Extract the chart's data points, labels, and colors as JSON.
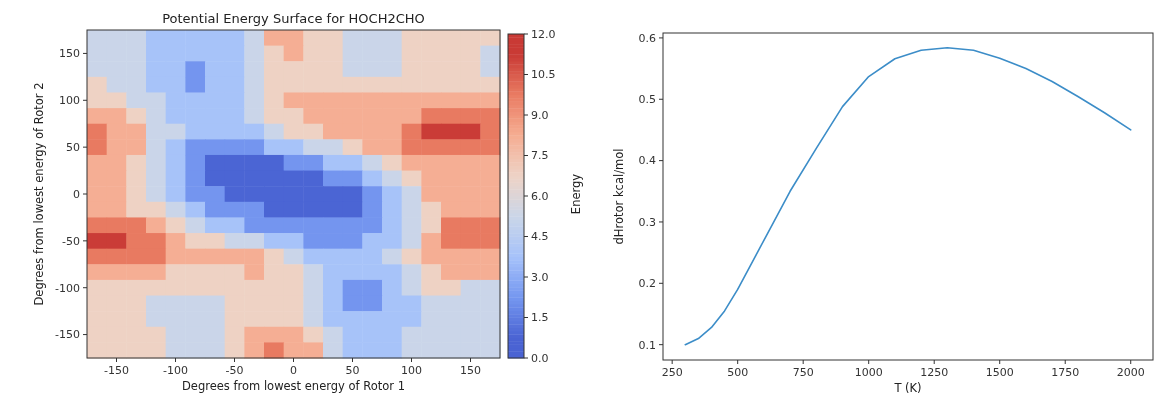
{
  "chart_data": [
    {
      "type": "heatmap",
      "title": "Potential Energy Surface for HOCH2CHO",
      "xlabel": "Degrees from lowest energy of Rotor 1",
      "ylabel": "Degrees from lowest energy of Rotor 2",
      "clabel": "Energy",
      "categories": [
        null,
        "-150",
        null,
        null,
        "-100",
        null,
        null,
        "-50",
        null,
        null,
        "0",
        null,
        null,
        "50",
        null,
        null,
        "100",
        null,
        null,
        "150",
        null
      ],
      "y_categories": [
        null,
        "150",
        null,
        null,
        "100",
        null,
        null,
        "50",
        null,
        null,
        "0",
        null,
        null,
        "-50",
        null,
        null,
        "-100",
        null,
        null,
        "-150",
        null
      ],
      "clim": [
        0,
        12
      ],
      "cticks": [
        {
          "value": 0,
          "label": "0.0"
        },
        1.5,
        {
          "value": 3,
          "label": "3.0"
        },
        4.5,
        {
          "value": 6,
          "label": "6.0"
        },
        7.5,
        {
          "value": 9,
          "label": "9.0"
        },
        10.5,
        {
          "value": 12,
          "label": "12.0"
        }
      ],
      "cells": [
        [
          5.2,
          5.2,
          5.2,
          3.8,
          3.8,
          3.8,
          3.8,
          3.8,
          5.2,
          8.2,
          8.2,
          6.8,
          6.8,
          5.2,
          5.2,
          5.2,
          6.8,
          6.8,
          6.8,
          6.8,
          6.8
        ],
        [
          5.2,
          5.2,
          5.2,
          3.8,
          3.8,
          3.8,
          3.8,
          3.8,
          5.2,
          6.8,
          8.2,
          6.8,
          6.8,
          5.2,
          5.2,
          5.2,
          6.8,
          6.8,
          6.8,
          6.8,
          5.2
        ],
        [
          5.2,
          5.2,
          5.2,
          3.8,
          3.8,
          2.2,
          3.8,
          3.8,
          5.2,
          6.8,
          6.8,
          6.8,
          6.8,
          5.2,
          5.2,
          5.2,
          6.8,
          6.8,
          6.8,
          6.8,
          5.2
        ],
        [
          6.8,
          5.2,
          5.2,
          3.8,
          3.8,
          2.2,
          3.8,
          3.8,
          5.2,
          6.8,
          6.8,
          6.8,
          6.8,
          6.8,
          6.8,
          6.8,
          6.8,
          6.8,
          6.8,
          6.8,
          6.8
        ],
        [
          6.8,
          6.8,
          5.2,
          5.2,
          3.8,
          3.8,
          3.8,
          3.8,
          5.2,
          6.8,
          8.2,
          8.2,
          8.2,
          8.2,
          8.2,
          8.2,
          8.2,
          8.2,
          8.2,
          8.2,
          8.2
        ],
        [
          8.2,
          8.2,
          6.8,
          5.2,
          3.8,
          3.8,
          3.8,
          3.8,
          5.2,
          6.8,
          6.8,
          8.2,
          8.2,
          8.2,
          8.2,
          8.2,
          8.2,
          9.8,
          9.8,
          9.8,
          9.8
        ],
        [
          9.8,
          8.2,
          8.2,
          5.2,
          5.2,
          3.8,
          3.8,
          3.8,
          3.8,
          5.2,
          6.8,
          6.8,
          8.2,
          8.2,
          8.2,
          8.2,
          9.8,
          11.2,
          11.2,
          11.2,
          9.8
        ],
        [
          9.8,
          8.2,
          8.2,
          5.2,
          3.8,
          2.2,
          2.2,
          2.2,
          2.2,
          3.8,
          3.8,
          5.2,
          5.2,
          6.8,
          8.2,
          8.2,
          9.8,
          9.8,
          9.8,
          9.8,
          9.8
        ],
        [
          8.2,
          8.2,
          6.8,
          5.2,
          3.8,
          2.2,
          0.8,
          0.8,
          0.8,
          0.8,
          2.2,
          2.2,
          3.8,
          3.8,
          5.2,
          6.8,
          8.2,
          8.2,
          8.2,
          8.2,
          8.2
        ],
        [
          8.2,
          8.2,
          6.8,
          5.2,
          3.8,
          2.2,
          0.8,
          0.8,
          0.8,
          0.8,
          0.8,
          0.8,
          2.2,
          2.2,
          3.8,
          5.2,
          6.8,
          8.2,
          8.2,
          8.2,
          8.2
        ],
        [
          8.2,
          8.2,
          6.8,
          5.2,
          3.8,
          2.2,
          2.2,
          0.8,
          0.8,
          0.8,
          0.8,
          0.8,
          0.8,
          0.8,
          2.2,
          3.8,
          5.2,
          8.2,
          8.2,
          8.2,
          8.2
        ],
        [
          8.2,
          8.2,
          6.8,
          6.8,
          5.2,
          3.8,
          2.2,
          2.2,
          2.2,
          0.8,
          0.8,
          0.8,
          0.8,
          0.8,
          2.2,
          3.8,
          5.2,
          6.8,
          8.2,
          8.2,
          8.2
        ],
        [
          9.8,
          9.8,
          9.8,
          8.2,
          6.8,
          5.2,
          3.8,
          3.8,
          2.2,
          2.2,
          2.2,
          2.2,
          2.2,
          2.2,
          2.2,
          3.8,
          5.2,
          6.8,
          9.8,
          9.8,
          9.8
        ],
        [
          11.2,
          11.2,
          9.8,
          9.8,
          8.2,
          6.8,
          6.8,
          5.2,
          5.2,
          3.8,
          3.8,
          2.2,
          2.2,
          2.2,
          3.8,
          3.8,
          5.2,
          8.2,
          9.8,
          9.8,
          9.8
        ],
        [
          9.8,
          9.8,
          9.8,
          9.8,
          8.2,
          8.2,
          8.2,
          8.2,
          8.2,
          6.8,
          5.2,
          3.8,
          3.8,
          3.8,
          3.8,
          5.2,
          6.8,
          8.2,
          8.2,
          8.2,
          8.2
        ],
        [
          8.2,
          8.2,
          8.2,
          8.2,
          6.8,
          6.8,
          6.8,
          6.8,
          8.2,
          6.8,
          6.8,
          5.2,
          3.8,
          3.8,
          3.8,
          3.8,
          5.2,
          6.8,
          8.2,
          8.2,
          8.2
        ],
        [
          6.8,
          6.8,
          6.8,
          6.8,
          6.8,
          6.8,
          6.8,
          6.8,
          6.8,
          6.8,
          6.8,
          5.2,
          3.8,
          2.2,
          2.2,
          3.8,
          5.2,
          6.8,
          6.8,
          5.2,
          5.2
        ],
        [
          6.8,
          6.8,
          6.8,
          5.2,
          5.2,
          5.2,
          5.2,
          6.8,
          6.8,
          6.8,
          6.8,
          5.2,
          3.8,
          2.2,
          2.2,
          3.8,
          3.8,
          5.2,
          5.2,
          5.2,
          5.2
        ],
        [
          6.8,
          6.8,
          6.8,
          5.2,
          5.2,
          5.2,
          5.2,
          6.8,
          6.8,
          6.8,
          6.8,
          5.2,
          3.8,
          3.8,
          3.8,
          3.8,
          3.8,
          5.2,
          5.2,
          5.2,
          5.2
        ],
        [
          6.8,
          6.8,
          6.8,
          6.8,
          5.2,
          5.2,
          5.2,
          6.8,
          8.2,
          8.2,
          8.2,
          6.8,
          5.2,
          3.8,
          3.8,
          3.8,
          5.2,
          5.2,
          5.2,
          5.2,
          5.2
        ],
        [
          6.8,
          6.8,
          6.8,
          6.8,
          5.2,
          5.2,
          5.2,
          6.8,
          8.2,
          9.8,
          8.2,
          8.2,
          5.2,
          3.8,
          3.8,
          3.8,
          5.2,
          5.2,
          5.2,
          5.2,
          5.2
        ]
      ]
    },
    {
      "type": "line",
      "xlabel": "T (K)",
      "ylabel": "dHrotor kcal/mol",
      "x": [
        300,
        350,
        400,
        450,
        500,
        600,
        700,
        800,
        900,
        1000,
        1100,
        1200,
        1300,
        1400,
        1500,
        1600,
        1700,
        1800,
        1900,
        2000
      ],
      "series": [
        {
          "color": "#3c8dc8",
          "values": [
            0.1,
            0.11,
            0.128,
            0.155,
            0.19,
            0.27,
            0.35,
            0.42,
            0.488,
            0.537,
            0.566,
            0.58,
            0.584,
            0.58,
            0.567,
            0.55,
            0.529,
            0.504,
            0.478,
            0.45
          ]
        }
      ],
      "xlim": [
        215,
        2085
      ],
      "ylim": [
        0.075,
        0.608
      ],
      "xticks": [
        250,
        500,
        750,
        1000,
        1250,
        1500,
        1750,
        2000
      ],
      "yticks": [
        0.1,
        0.2,
        0.3,
        0.4,
        0.5,
        0.6
      ],
      "grid": false
    }
  ]
}
